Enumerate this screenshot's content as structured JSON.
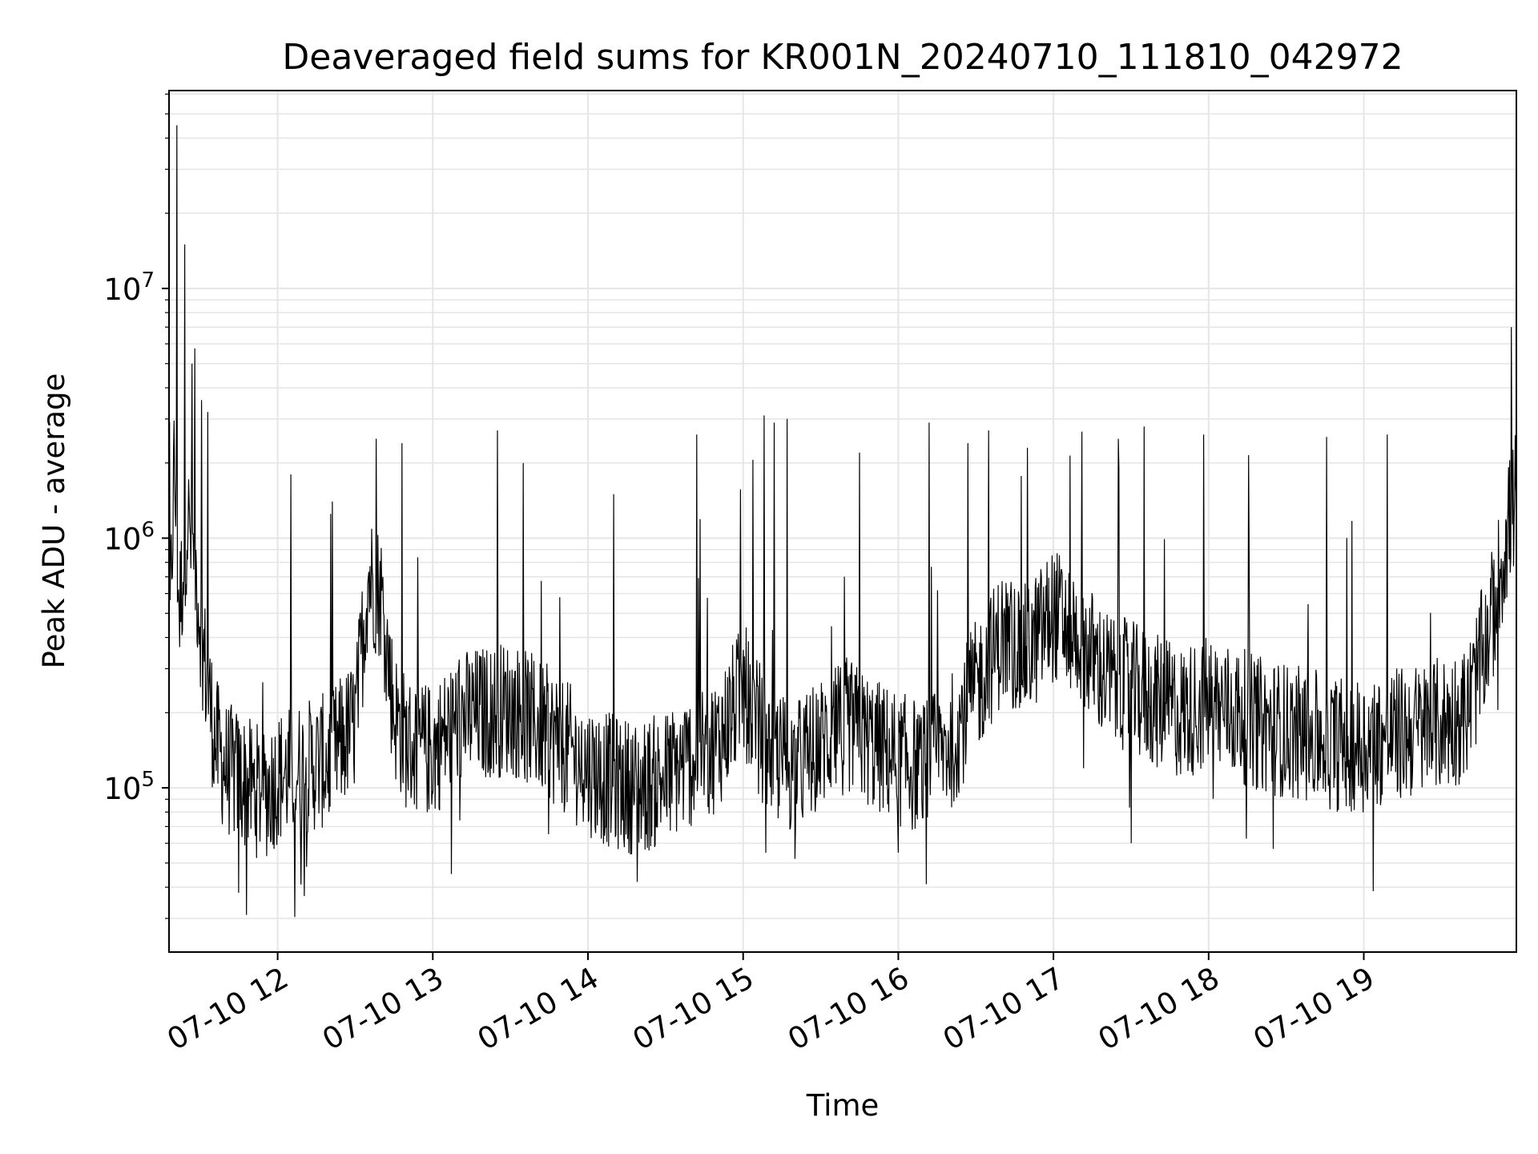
{
  "chart_data": {
    "type": "line",
    "title": "Deaveraged field sums for KR001N_20240710_111810_042972",
    "xlabel": "Time",
    "ylabel": "Peak ADU - average",
    "x_tick_labels": [
      "07-10 12",
      "07-10 13",
      "07-10 14",
      "07-10 15",
      "07-10 16",
      "07-10 17",
      "07-10 18",
      "07-10 19"
    ],
    "x_tick_hours": [
      12,
      13,
      14,
      15,
      16,
      17,
      18,
      19
    ],
    "y_tick_labels": [
      {
        "base": "10",
        "exp": "5",
        "value": 100000
      },
      {
        "base": "10",
        "exp": "6",
        "value": 1000000
      },
      {
        "base": "10",
        "exp": "7",
        "value": 10000000
      }
    ],
    "xlim": [
      "2024-07-10 11:18",
      "2024-07-10 19:59"
    ],
    "ylim": [
      22000,
      62000000
    ],
    "y_scale": "log",
    "grid": true,
    "line_color": "#000000",
    "grid_color": "#e6e6e6",
    "series": [
      {
        "x": [
          "2024-07-10 11:18",
          "2024-07-10 11:20",
          "2024-07-10 11:22",
          "2024-07-10 11:25",
          "2024-07-10 11:28",
          "2024-07-10 11:32",
          "2024-07-10 11:36",
          "2024-07-10 11:40",
          "2024-07-10 11:45",
          "2024-07-10 11:50",
          "2024-07-10 11:55",
          "2024-07-10 12:00",
          "2024-07-10 12:10",
          "2024-07-10 12:20",
          "2024-07-10 12:30",
          "2024-07-10 12:35",
          "2024-07-10 12:40",
          "2024-07-10 12:45",
          "2024-07-10 12:50",
          "2024-07-10 13:00",
          "2024-07-10 13:10",
          "2024-07-10 13:20",
          "2024-07-10 13:30",
          "2024-07-10 13:40",
          "2024-07-10 13:50",
          "2024-07-10 14:00",
          "2024-07-10 14:10",
          "2024-07-10 14:20",
          "2024-07-10 14:30",
          "2024-07-10 14:40",
          "2024-07-10 14:50",
          "2024-07-10 15:00",
          "2024-07-10 15:10",
          "2024-07-10 15:20",
          "2024-07-10 15:30",
          "2024-07-10 15:40",
          "2024-07-10 15:50",
          "2024-07-10 16:00",
          "2024-07-10 16:10",
          "2024-07-10 16:20",
          "2024-07-10 16:30",
          "2024-07-10 16:40",
          "2024-07-10 16:50",
          "2024-07-10 17:00",
          "2024-07-10 17:10",
          "2024-07-10 17:20",
          "2024-07-10 17:30",
          "2024-07-10 17:40",
          "2024-07-10 17:50",
          "2024-07-10 18:00",
          "2024-07-10 18:10",
          "2024-07-10 18:20",
          "2024-07-10 18:30",
          "2024-07-10 18:40",
          "2024-07-10 18:50",
          "2024-07-10 19:00",
          "2024-07-10 19:10",
          "2024-07-10 19:20",
          "2024-07-10 19:30",
          "2024-07-10 19:40",
          "2024-07-10 19:50",
          "2024-07-10 19:55",
          "2024-07-10 19:59"
        ],
        "y": [
          300000,
          2000000,
          500000,
          1200000,
          800000,
          300000,
          150000,
          120000,
          110000,
          100000,
          95000,
          110000,
          120000,
          130000,
          180000,
          700000,
          600000,
          200000,
          150000,
          140000,
          190000,
          200000,
          210000,
          180000,
          150000,
          120000,
          105000,
          100000,
          110000,
          130000,
          150000,
          250000,
          140000,
          120000,
          150000,
          180000,
          150000,
          130000,
          120000,
          150000,
          250000,
          400000,
          350000,
          500000,
          400000,
          280000,
          250000,
          220000,
          200000,
          220000,
          200000,
          180000,
          170000,
          160000,
          150000,
          150000,
          160000,
          170000,
          180000,
          200000,
          500000,
          1000000,
          1500000
        ],
        "spikes": [
          {
            "x": "2024-07-10 11:21",
            "y": 45000000
          },
          {
            "x": "2024-07-10 11:24",
            "y": 15000000
          },
          {
            "x": "2024-07-10 11:27",
            "y": 5000000
          },
          {
            "x": "2024-07-10 11:33",
            "y": 3200000
          },
          {
            "x": "2024-07-10 12:05",
            "y": 1800000
          },
          {
            "x": "2024-07-10 12:38",
            "y": 2500000
          },
          {
            "x": "2024-07-10 12:48",
            "y": 2400000
          },
          {
            "x": "2024-07-10 13:25",
            "y": 2700000
          },
          {
            "x": "2024-07-10 13:35",
            "y": 2000000
          },
          {
            "x": "2024-07-10 14:10",
            "y": 1500000
          },
          {
            "x": "2024-07-10 14:42",
            "y": 2600000
          },
          {
            "x": "2024-07-10 15:08",
            "y": 3100000
          },
          {
            "x": "2024-07-10 15:12",
            "y": 2900000
          },
          {
            "x": "2024-07-10 15:17",
            "y": 3000000
          },
          {
            "x": "2024-07-10 15:45",
            "y": 2200000
          },
          {
            "x": "2024-07-10 16:12",
            "y": 2900000
          },
          {
            "x": "2024-07-10 16:27",
            "y": 2400000
          },
          {
            "x": "2024-07-10 16:35",
            "y": 2700000
          },
          {
            "x": "2024-07-10 16:50",
            "y": 2300000
          },
          {
            "x": "2024-07-10 17:25",
            "y": 2500000
          },
          {
            "x": "2024-07-10 17:35",
            "y": 2800000
          },
          {
            "x": "2024-07-10 17:58",
            "y": 2600000
          },
          {
            "x": "2024-07-10 19:09",
            "y": 2600000
          },
          {
            "x": "2024-07-10 19:57",
            "y": 7000000
          }
        ],
        "dips": [
          {
            "x": "2024-07-10 11:45",
            "y": 38000
          },
          {
            "x": "2024-07-10 11:48",
            "y": 31000
          },
          {
            "x": "2024-07-10 12:09",
            "y": 41000
          },
          {
            "x": "2024-07-10 14:19",
            "y": 42000
          },
          {
            "x": "2024-07-10 15:20",
            "y": 52000
          },
          {
            "x": "2024-07-10 16:00",
            "y": 55000
          },
          {
            "x": "2024-07-10 17:30",
            "y": 60000
          },
          {
            "x": "2024-07-10 18:25",
            "y": 57000
          }
        ]
      }
    ]
  }
}
